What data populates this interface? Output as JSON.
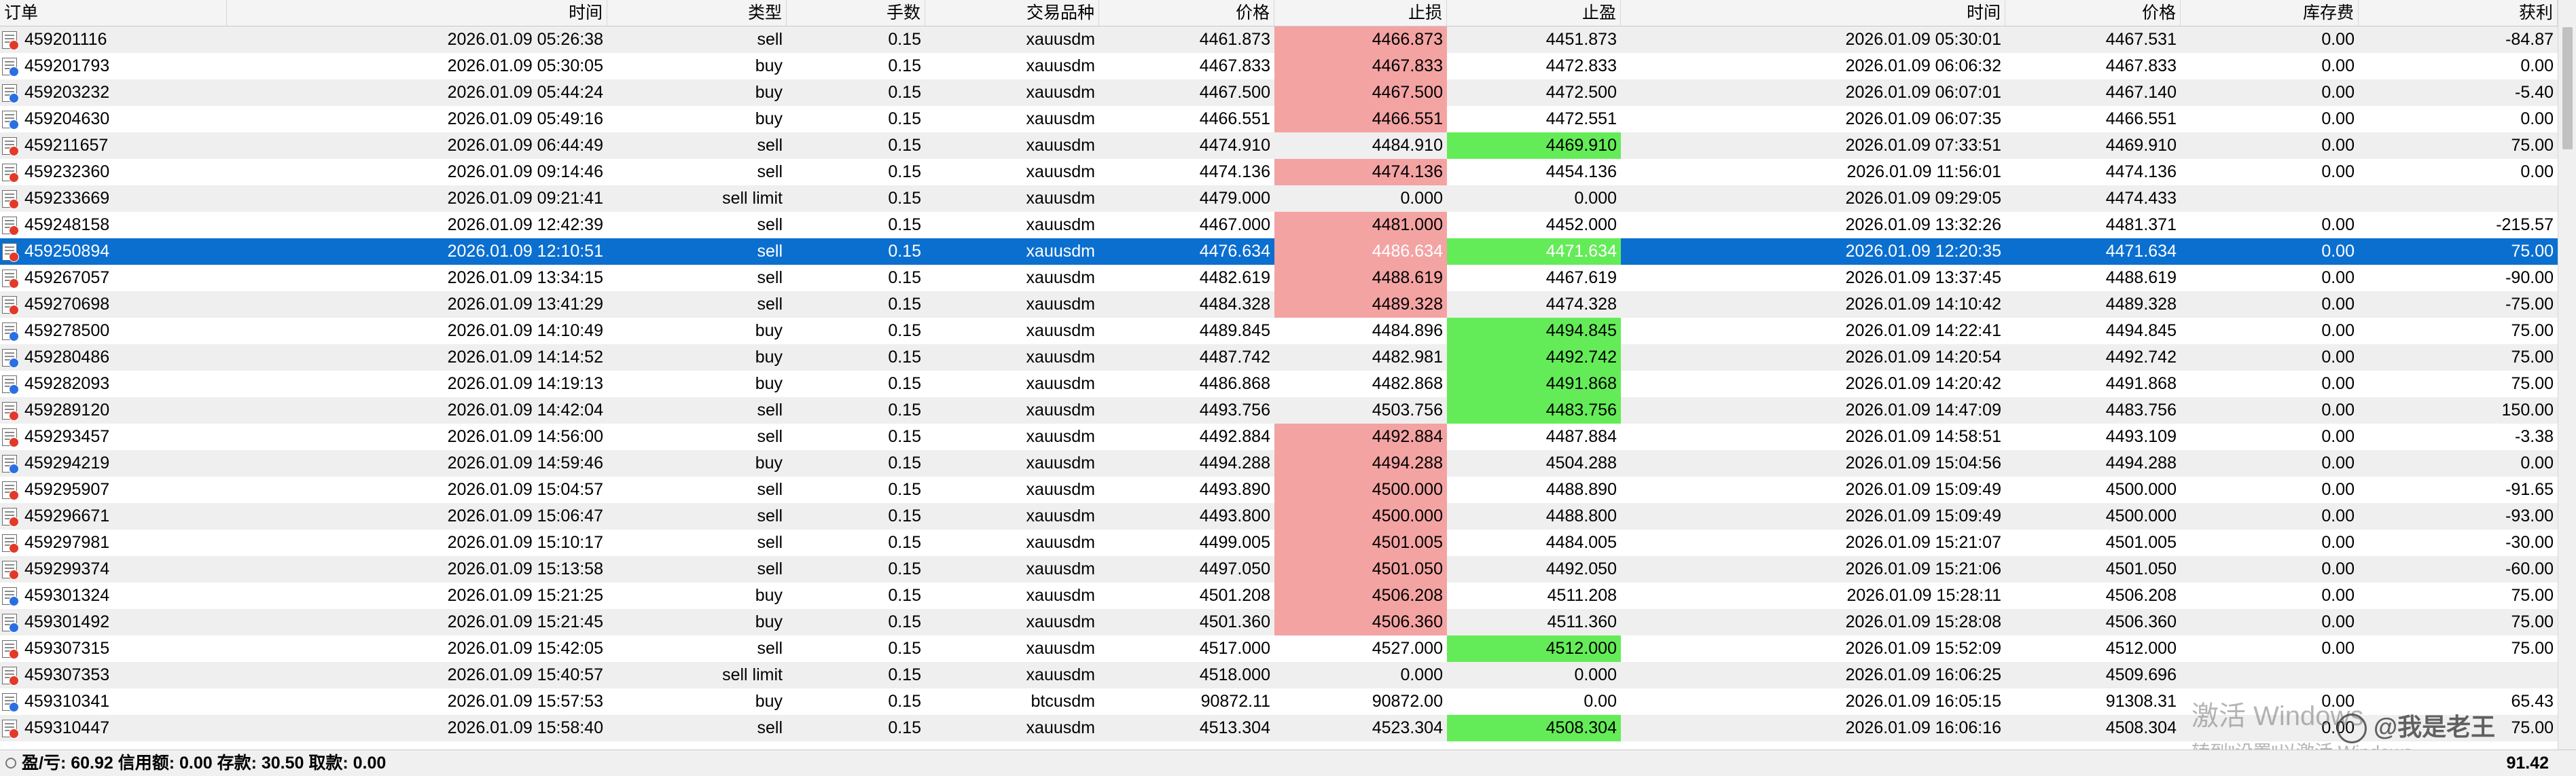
{
  "columns": [
    "订单",
    "时间",
    "类型",
    "手数",
    "交易品种",
    "价格",
    "止损",
    "止盈",
    "时间",
    "价格",
    "库存费",
    "获利"
  ],
  "rows": [
    {
      "order": "459201116",
      "open_time": "2026.01.09 05:26:38",
      "type": "sell",
      "lots": "0.15",
      "symbol": "xauusdm",
      "open_price": "4461.873",
      "sl": "4466.873",
      "tp": "4451.873",
      "close_time": "2026.01.09 05:30:01",
      "close_price": "4467.531",
      "swap": "0.00",
      "profit": "-84.87",
      "sl_color": "red",
      "tp_color": ""
    },
    {
      "order": "459201793",
      "open_time": "2026.01.09 05:30:05",
      "type": "buy",
      "lots": "0.15",
      "symbol": "xauusdm",
      "open_price": "4467.833",
      "sl": "4467.833",
      "tp": "4472.833",
      "close_time": "2026.01.09 06:06:32",
      "close_price": "4467.833",
      "swap": "0.00",
      "profit": "0.00",
      "sl_color": "red",
      "tp_color": ""
    },
    {
      "order": "459203232",
      "open_time": "2026.01.09 05:44:24",
      "type": "buy",
      "lots": "0.15",
      "symbol": "xauusdm",
      "open_price": "4467.500",
      "sl": "4467.500",
      "tp": "4472.500",
      "close_time": "2026.01.09 06:07:01",
      "close_price": "4467.140",
      "swap": "0.00",
      "profit": "-5.40",
      "sl_color": "red",
      "tp_color": ""
    },
    {
      "order": "459204630",
      "open_time": "2026.01.09 05:49:16",
      "type": "buy",
      "lots": "0.15",
      "symbol": "xauusdm",
      "open_price": "4466.551",
      "sl": "4466.551",
      "tp": "4472.551",
      "close_time": "2026.01.09 06:07:35",
      "close_price": "4466.551",
      "swap": "0.00",
      "profit": "0.00",
      "sl_color": "red",
      "tp_color": ""
    },
    {
      "order": "459211657",
      "open_time": "2026.01.09 06:44:49",
      "type": "sell",
      "lots": "0.15",
      "symbol": "xauusdm",
      "open_price": "4474.910",
      "sl": "4484.910",
      "tp": "4469.910",
      "close_time": "2026.01.09 07:33:51",
      "close_price": "4469.910",
      "swap": "0.00",
      "profit": "75.00",
      "sl_color": "",
      "tp_color": "green"
    },
    {
      "order": "459232360",
      "open_time": "2026.01.09 09:14:46",
      "type": "sell",
      "lots": "0.15",
      "symbol": "xauusdm",
      "open_price": "4474.136",
      "sl": "4474.136",
      "tp": "4454.136",
      "close_time": "2026.01.09 11:56:01",
      "close_price": "4474.136",
      "swap": "0.00",
      "profit": "0.00",
      "sl_color": "red",
      "tp_color": ""
    },
    {
      "order": "459233669",
      "open_time": "2026.01.09 09:21:41",
      "type": "sell limit",
      "lots": "0.15",
      "symbol": "xauusdm",
      "open_price": "4479.000",
      "sl": "0.000",
      "tp": "0.000",
      "close_time": "2026.01.09 09:29:05",
      "close_price": "4474.433",
      "swap": "",
      "profit": "",
      "sl_color": "",
      "tp_color": ""
    },
    {
      "order": "459248158",
      "open_time": "2026.01.09 12:42:39",
      "type": "sell",
      "lots": "0.15",
      "symbol": "xauusdm",
      "open_price": "4467.000",
      "sl": "4481.000",
      "tp": "4452.000",
      "close_time": "2026.01.09 13:32:26",
      "close_price": "4481.371",
      "swap": "0.00",
      "profit": "-215.57",
      "sl_color": "red",
      "tp_color": ""
    },
    {
      "order": "459250894",
      "open_time": "2026.01.09 12:10:51",
      "type": "sell",
      "lots": "0.15",
      "symbol": "xauusdm",
      "open_price": "4476.634",
      "sl": "4486.634",
      "tp": "4471.634",
      "close_time": "2026.01.09 12:20:35",
      "close_price": "4471.634",
      "swap": "0.00",
      "profit": "75.00",
      "sl_color": "red",
      "tp_color": "green",
      "selected": true
    },
    {
      "order": "459267057",
      "open_time": "2026.01.09 13:34:15",
      "type": "sell",
      "lots": "0.15",
      "symbol": "xauusdm",
      "open_price": "4482.619",
      "sl": "4488.619",
      "tp": "4467.619",
      "close_time": "2026.01.09 13:37:45",
      "close_price": "4488.619",
      "swap": "0.00",
      "profit": "-90.00",
      "sl_color": "red",
      "tp_color": ""
    },
    {
      "order": "459270698",
      "open_time": "2026.01.09 13:41:29",
      "type": "sell",
      "lots": "0.15",
      "symbol": "xauusdm",
      "open_price": "4484.328",
      "sl": "4489.328",
      "tp": "4474.328",
      "close_time": "2026.01.09 14:10:42",
      "close_price": "4489.328",
      "swap": "0.00",
      "profit": "-75.00",
      "sl_color": "red",
      "tp_color": ""
    },
    {
      "order": "459278500",
      "open_time": "2026.01.09 14:10:49",
      "type": "buy",
      "lots": "0.15",
      "symbol": "xauusdm",
      "open_price": "4489.845",
      "sl": "4484.896",
      "tp": "4494.845",
      "close_time": "2026.01.09 14:22:41",
      "close_price": "4494.845",
      "swap": "0.00",
      "profit": "75.00",
      "sl_color": "",
      "tp_color": "green"
    },
    {
      "order": "459280486",
      "open_time": "2026.01.09 14:14:52",
      "type": "buy",
      "lots": "0.15",
      "symbol": "xauusdm",
      "open_price": "4487.742",
      "sl": "4482.981",
      "tp": "4492.742",
      "close_time": "2026.01.09 14:20:54",
      "close_price": "4492.742",
      "swap": "0.00",
      "profit": "75.00",
      "sl_color": "",
      "tp_color": "green"
    },
    {
      "order": "459282093",
      "open_time": "2026.01.09 14:19:13",
      "type": "buy",
      "lots": "0.15",
      "symbol": "xauusdm",
      "open_price": "4486.868",
      "sl": "4482.868",
      "tp": "4491.868",
      "close_time": "2026.01.09 14:20:42",
      "close_price": "4491.868",
      "swap": "0.00",
      "profit": "75.00",
      "sl_color": "",
      "tp_color": "green"
    },
    {
      "order": "459289120",
      "open_time": "2026.01.09 14:42:04",
      "type": "sell",
      "lots": "0.15",
      "symbol": "xauusdm",
      "open_price": "4493.756",
      "sl": "4503.756",
      "tp": "4483.756",
      "close_time": "2026.01.09 14:47:09",
      "close_price": "4483.756",
      "swap": "0.00",
      "profit": "150.00",
      "sl_color": "",
      "tp_color": "green"
    },
    {
      "order": "459293457",
      "open_time": "2026.01.09 14:56:00",
      "type": "sell",
      "lots": "0.15",
      "symbol": "xauusdm",
      "open_price": "4492.884",
      "sl": "4492.884",
      "tp": "4487.884",
      "close_time": "2026.01.09 14:58:51",
      "close_price": "4493.109",
      "swap": "0.00",
      "profit": "-3.38",
      "sl_color": "red",
      "tp_color": ""
    },
    {
      "order": "459294219",
      "open_time": "2026.01.09 14:59:46",
      "type": "buy",
      "lots": "0.15",
      "symbol": "xauusdm",
      "open_price": "4494.288",
      "sl": "4494.288",
      "tp": "4504.288",
      "close_time": "2026.01.09 15:04:56",
      "close_price": "4494.288",
      "swap": "0.00",
      "profit": "0.00",
      "sl_color": "red",
      "tp_color": ""
    },
    {
      "order": "459295907",
      "open_time": "2026.01.09 15:04:57",
      "type": "sell",
      "lots": "0.15",
      "symbol": "xauusdm",
      "open_price": "4493.890",
      "sl": "4500.000",
      "tp": "4488.890",
      "close_time": "2026.01.09 15:09:49",
      "close_price": "4500.000",
      "swap": "0.00",
      "profit": "-91.65",
      "sl_color": "red",
      "tp_color": ""
    },
    {
      "order": "459296671",
      "open_time": "2026.01.09 15:06:47",
      "type": "sell",
      "lots": "0.15",
      "symbol": "xauusdm",
      "open_price": "4493.800",
      "sl": "4500.000",
      "tp": "4488.800",
      "close_time": "2026.01.09 15:09:49",
      "close_price": "4500.000",
      "swap": "0.00",
      "profit": "-93.00",
      "sl_color": "red",
      "tp_color": ""
    },
    {
      "order": "459297981",
      "open_time": "2026.01.09 15:10:17",
      "type": "sell",
      "lots": "0.15",
      "symbol": "xauusdm",
      "open_price": "4499.005",
      "sl": "4501.005",
      "tp": "4484.005",
      "close_time": "2026.01.09 15:21:07",
      "close_price": "4501.005",
      "swap": "0.00",
      "profit": "-30.00",
      "sl_color": "red",
      "tp_color": ""
    },
    {
      "order": "459299374",
      "open_time": "2026.01.09 15:13:58",
      "type": "sell",
      "lots": "0.15",
      "symbol": "xauusdm",
      "open_price": "4497.050",
      "sl": "4501.050",
      "tp": "4492.050",
      "close_time": "2026.01.09 15:21:06",
      "close_price": "4501.050",
      "swap": "0.00",
      "profit": "-60.00",
      "sl_color": "red",
      "tp_color": ""
    },
    {
      "order": "459301324",
      "open_time": "2026.01.09 15:21:25",
      "type": "buy",
      "lots": "0.15",
      "symbol": "xauusdm",
      "open_price": "4501.208",
      "sl": "4506.208",
      "tp": "4511.208",
      "close_time": "2026.01.09 15:28:11",
      "close_price": "4506.208",
      "swap": "0.00",
      "profit": "75.00",
      "sl_color": "red",
      "tp_color": ""
    },
    {
      "order": "459301492",
      "open_time": "2026.01.09 15:21:45",
      "type": "buy",
      "lots": "0.15",
      "symbol": "xauusdm",
      "open_price": "4501.360",
      "sl": "4506.360",
      "tp": "4511.360",
      "close_time": "2026.01.09 15:28:08",
      "close_price": "4506.360",
      "swap": "0.00",
      "profit": "75.00",
      "sl_color": "red",
      "tp_color": ""
    },
    {
      "order": "459307315",
      "open_time": "2026.01.09 15:42:05",
      "type": "sell",
      "lots": "0.15",
      "symbol": "xauusdm",
      "open_price": "4517.000",
      "sl": "4527.000",
      "tp": "4512.000",
      "close_time": "2026.01.09 15:52:09",
      "close_price": "4512.000",
      "swap": "0.00",
      "profit": "75.00",
      "sl_color": "",
      "tp_color": "green"
    },
    {
      "order": "459307353",
      "open_time": "2026.01.09 15:40:57",
      "type": "sell limit",
      "lots": "0.15",
      "symbol": "xauusdm",
      "open_price": "4518.000",
      "sl": "0.000",
      "tp": "0.000",
      "close_time": "2026.01.09 16:06:25",
      "close_price": "4509.696",
      "swap": "",
      "profit": "",
      "sl_color": "",
      "tp_color": ""
    },
    {
      "order": "459310341",
      "open_time": "2026.01.09 15:57:53",
      "type": "buy",
      "lots": "0.15",
      "symbol": "btcusdm",
      "open_price": "90872.11",
      "sl": "90872.00",
      "tp": "0.00",
      "close_time": "2026.01.09 16:05:15",
      "close_price": "91308.31",
      "swap": "0.00",
      "profit": "65.43",
      "sl_color": "",
      "tp_color": ""
    },
    {
      "order": "459310447",
      "open_time": "2026.01.09 15:58:40",
      "type": "sell",
      "lots": "0.15",
      "symbol": "xauusdm",
      "open_price": "4513.304",
      "sl": "4523.304",
      "tp": "4508.304",
      "close_time": "2026.01.09 16:06:16",
      "close_price": "4508.304",
      "swap": "0.00",
      "profit": "75.00",
      "sl_color": "",
      "tp_color": "green"
    }
  ],
  "status": {
    "summary": "盈/亏: 60.92 信用额: 0.00 存款: 30.50 取款: 0.00",
    "total": "91.42"
  },
  "overlay": {
    "activate_line1": "激活 Windows",
    "activate_line2": "转到\"设置\"以激活 Windows。",
    "wechat_label": "@我是老王"
  },
  "colors": {
    "selected_row": "#0b6fd0",
    "stop_loss_highlight": "#f4a3a3",
    "take_profit_highlight": "#64ec58",
    "odd_row": "#efefef"
  }
}
